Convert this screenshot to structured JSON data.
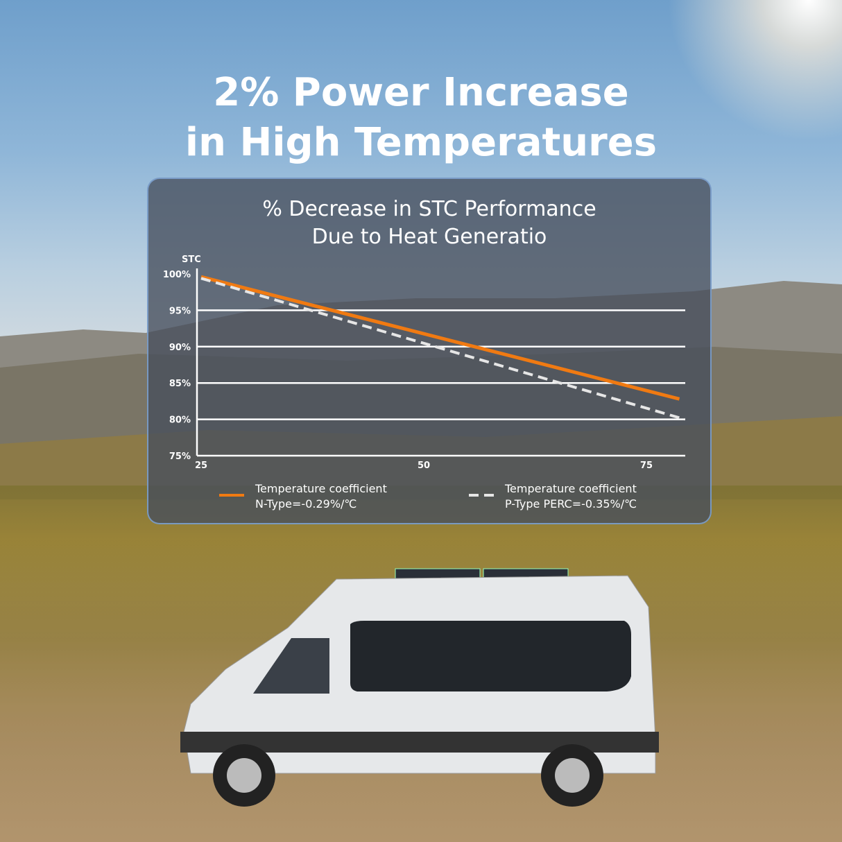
{
  "headline": {
    "line1": "2% Power Increase",
    "line2": "in High Temperatures"
  },
  "chart_data": {
    "type": "line",
    "title_line1": "% Decrease in STC Performance",
    "title_line2": "Due to Heat Generatio",
    "ylabel": "STC",
    "xlabel": "",
    "xlim": [
      25,
      80
    ],
    "ylim": [
      75,
      100
    ],
    "x_ticks": [
      25,
      50,
      75
    ],
    "y_ticks": [
      {
        "value": 100,
        "label": "100%"
      },
      {
        "value": 95,
        "label": "95%"
      },
      {
        "value": 90,
        "label": "90%"
      },
      {
        "value": 85,
        "label": "85%"
      },
      {
        "value": 80,
        "label": "80%"
      },
      {
        "value": 75,
        "label": "75%"
      }
    ],
    "grid": "horizontal",
    "legend_position": "bottom",
    "series": [
      {
        "name_line1": "Temperature coefficient",
        "name_line2": "N-Type=-0.29%/℃",
        "color": "#f07a12",
        "style": "solid",
        "points": [
          [
            25,
            99.6
          ],
          [
            78.7,
            82.8
          ]
        ]
      },
      {
        "name_line1": "Temperature coefficient",
        "name_line2": "P-Type PERC=-0.35%/℃",
        "color": "#e6e6e6",
        "style": "dashed",
        "points": [
          [
            25,
            99.4
          ],
          [
            79.3,
            80.0
          ]
        ]
      }
    ]
  }
}
